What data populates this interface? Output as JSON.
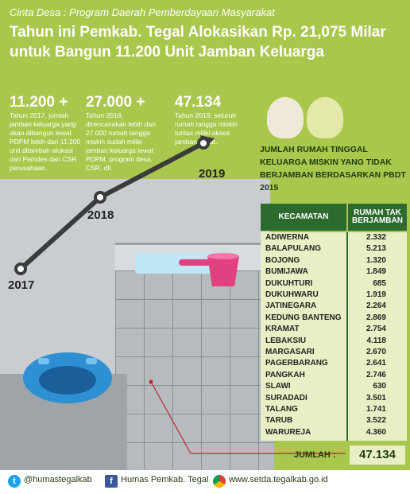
{
  "header": {
    "subtitle": "Cinta Desa : Program Daerah Pemberdayaan Masyarakat",
    "title": "Tahun ini Pemkab. Tegal Alokasikan Rp. 21,075 Milar untuk Bangun 11.200 Unit Jamban Keluarga"
  },
  "stats": [
    {
      "number": "11.200 +",
      "desc": "Tahun 2017, jumlah jamban keluarga yang akan dibangun lewat PDPM lebih dari 11.200 unit ditambah alokasi dari Pemdes dan CSR perusahaan."
    },
    {
      "number": "27.000 +",
      "desc": "Tahun 2018, direncanakan lebih dari 27.000 rumah tangga miskin sudah miliki jamban keluarga lewat PDPM, program desa, CSR, dll."
    },
    {
      "number": "47.134",
      "desc": "Tahun 2019, seluruh rumah tangga miskin tuntas miliki akses jamban sehat."
    }
  ],
  "years": [
    "2017",
    "2018",
    "2019"
  ],
  "table": {
    "title": "JUMLAH RUMAH TINGGAL KELUARGA MISKIN YANG TIDAK BERJAMBAN BERDASARKAN PBDT 2015",
    "col_kecamatan": "KECAMATAN",
    "col_jumlah": "RUMAH TAK BERJAMBAN",
    "rows": [
      {
        "k": "ADIWERNA",
        "v": "2.332"
      },
      {
        "k": "BALAPULANG",
        "v": "5.213"
      },
      {
        "k": "BOJONG",
        "v": "1.320"
      },
      {
        "k": "BUMIJAWA",
        "v": "1.849"
      },
      {
        "k": "DUKUHTURI",
        "v": "685"
      },
      {
        "k": "DUKUHWARU",
        "v": "1.919"
      },
      {
        "k": "JATINEGARA",
        "v": "2.264"
      },
      {
        "k": "KEDUNG BANTENG",
        "v": "2.869"
      },
      {
        "k": "KRAMAT",
        "v": "2.754"
      },
      {
        "k": "LEBAKSIU",
        "v": "4.118"
      },
      {
        "k": "MARGASARI",
        "v": "2.670"
      },
      {
        "k": "PAGERBARANG",
        "v": "2.641"
      },
      {
        "k": "PANGKAH",
        "v": "2.746"
      },
      {
        "k": "SLAWI",
        "v": "630"
      },
      {
        "k": "SURADADI",
        "v": "3.501"
      },
      {
        "k": "TALANG",
        "v": "1.741"
      },
      {
        "k": "TARUB",
        "v": "3.522"
      },
      {
        "k": "WARUREJA",
        "v": "4.360"
      }
    ],
    "total_label": "JUMLAH :",
    "total_value": "47.134"
  },
  "footer": {
    "twitter": "@humastegalkab",
    "facebook": "Humas Pemkab. Tegal",
    "web": "www.setda.tegalkab.go.id"
  },
  "colors": {
    "green_bg": "#a9c74c",
    "table_header": "#2d6a2d",
    "toilet_blue": "#2f8fd3",
    "basin_pink": "#e0417f"
  },
  "icons": [
    "twitter-icon",
    "facebook-icon",
    "chrome-icon"
  ]
}
